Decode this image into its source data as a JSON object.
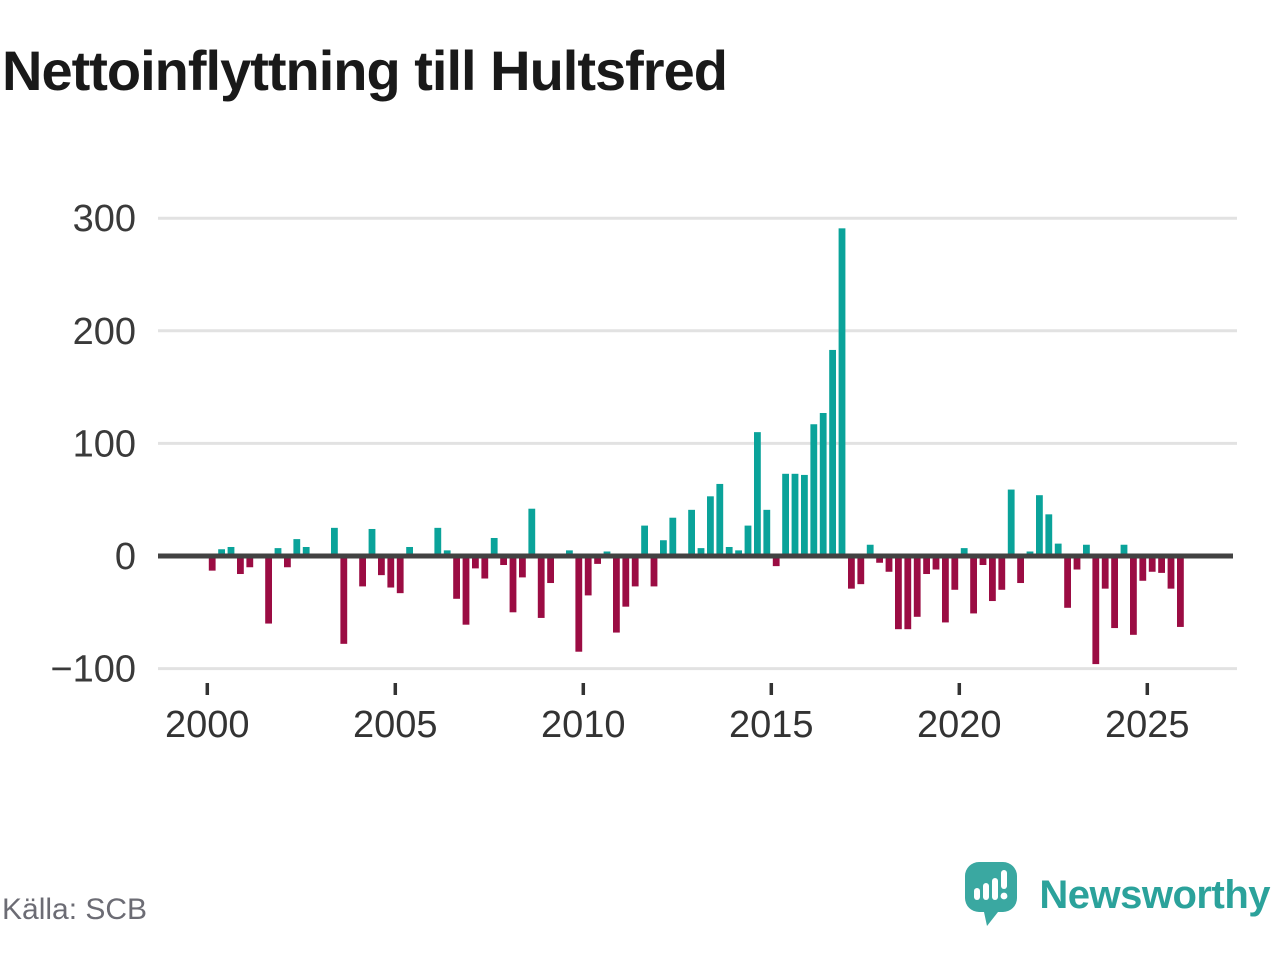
{
  "title": "Nettoinflyttning till Hultsfred",
  "source": "Källa: SCB",
  "brand": {
    "name": "Newsworthy"
  },
  "chart_data": {
    "type": "bar",
    "frequency": "quarterly",
    "start_year": 2000,
    "end_year": 2025,
    "title": "Nettoinflyttning till Hultsfred",
    "xlabel": "",
    "ylabel": "",
    "x_tick_labels": [
      "2000",
      "2005",
      "2010",
      "2015",
      "2020",
      "2025"
    ],
    "y_tick_values": [
      300,
      200,
      100,
      0,
      -100
    ],
    "y_tick_labels": [
      "300",
      "200",
      "100",
      "0",
      "−100"
    ],
    "ylim": [
      -130,
      320
    ],
    "grid": true,
    "legend": "none",
    "positive_color": "#0aa39a",
    "negative_color": "#9b0c43",
    "zero_line_color": "#424242",
    "gridline_color": "#e2e2e2",
    "values": [
      -13,
      6,
      8,
      -16,
      -10,
      0,
      -60,
      7,
      -10,
      15,
      8,
      0,
      0,
      25,
      -78,
      0,
      -27,
      24,
      -17,
      -28,
      -33,
      8,
      0,
      0,
      25,
      5,
      -38,
      -61,
      -11,
      -20,
      16,
      -8,
      -50,
      -19,
      42,
      -55,
      -24,
      0,
      5,
      -85,
      -35,
      -7,
      4,
      -68,
      -45,
      -27,
      27,
      -27,
      14,
      34,
      0,
      41,
      7,
      53,
      64,
      8,
      5,
      27,
      110,
      41,
      -9,
      73,
      73,
      72,
      117,
      127,
      183,
      291,
      -29,
      -25,
      10,
      -6,
      -14,
      -65,
      -65,
      -54,
      -16,
      -12,
      -59,
      -30,
      7,
      -51,
      -8,
      -40,
      -30,
      59,
      -24,
      4,
      54,
      37,
      11,
      -46,
      -12,
      10,
      -96,
      -29,
      -64,
      10,
      -70,
      -22,
      -14,
      -15,
      -29,
      -63
    ]
  }
}
